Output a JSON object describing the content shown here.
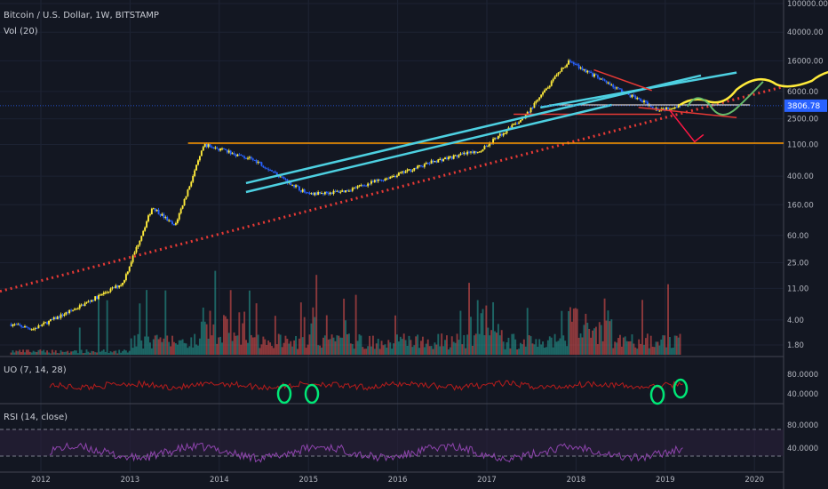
{
  "header": {
    "title": "Bitcoin / U.S. Dollar, 1W, BITSTAMP",
    "volume_label": "Vol (20)"
  },
  "panes": {
    "uo_label": "UO (7, 14, 28)",
    "rsi_label": "RSI (14, close)"
  },
  "last_price": "3806.78",
  "colors": {
    "background": "#131722",
    "bull": "#ffeb3b",
    "bear": "#2962ff",
    "vol_up": "#26a69a",
    "vol_down": "#ef5350",
    "channel": "#4dd0e1",
    "support_dotted": "#e53935",
    "horizontal": "#ff9800",
    "uo_line": "#b71c1c",
    "rsi_line": "#8e44ad",
    "annotation_green": "#00e676"
  },
  "chart_data": [
    {
      "type": "candlestick",
      "title": "Bitcoin / U.S. Dollar, 1W, BITSTAMP",
      "y_scale": "log",
      "ylim": [
        1,
        100000
      ],
      "y_ticks": [
        "100000.00",
        "40000.00",
        "16000.00",
        "6000.00",
        "2500.00",
        "1100.00",
        "400.00",
        "160.00",
        "60.00",
        "25.00",
        "11.00",
        "4.00",
        "1.80"
      ],
      "x_ticks": [
        "2012",
        "2013",
        "2014",
        "2015",
        "2016",
        "2017",
        "2018",
        "2019",
        "2020"
      ],
      "series": [
        {
          "name": "Price path (approx.)",
          "x": [
            "2011-09",
            "2011-12",
            "2012-06",
            "2012-12",
            "2013-04",
            "2013-07",
            "2013-11",
            "2014-06",
            "2015-01",
            "2015-06",
            "2016-01",
            "2016-06",
            "2016-12",
            "2017-06",
            "2017-12",
            "2018-06",
            "2018-12",
            "2019-03"
          ],
          "values": [
            3.5,
            3,
            6,
            13,
            150,
            80,
            1100,
            650,
            220,
            250,
            420,
            650,
            900,
            2600,
            16000,
            7000,
            3400,
            3806.78
          ]
        }
      ],
      "annotations": [
        "ascending channel",
        "dotted long-term support",
        "horizontal resistance ~1100",
        "projected path"
      ]
    },
    {
      "type": "bar",
      "title": "Vol (20)",
      "note": "weekly volume"
    },
    {
      "type": "line",
      "title": "UO (7, 14, 28)",
      "y_ticks": [
        "80.0000",
        "40.0000"
      ]
    },
    {
      "type": "line",
      "title": "RSI (14, close)",
      "y_ticks": [
        "80.0000",
        "40.0000"
      ]
    }
  ]
}
